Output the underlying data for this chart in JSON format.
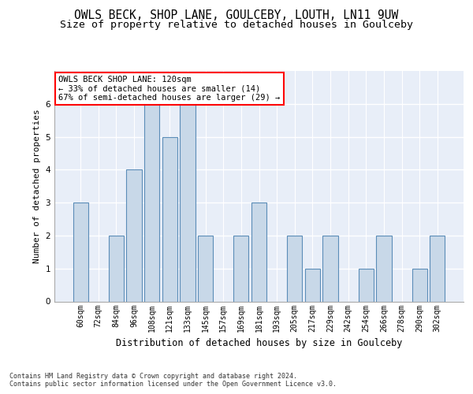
{
  "title1": "OWLS BECK, SHOP LANE, GOULCEBY, LOUTH, LN11 9UW",
  "title2": "Size of property relative to detached houses in Goulceby",
  "xlabel": "Distribution of detached houses by size in Goulceby",
  "ylabel": "Number of detached properties",
  "categories": [
    "60sqm",
    "72sqm",
    "84sqm",
    "96sqm",
    "108sqm",
    "121sqm",
    "133sqm",
    "145sqm",
    "157sqm",
    "169sqm",
    "181sqm",
    "193sqm",
    "205sqm",
    "217sqm",
    "229sqm",
    "242sqm",
    "254sqm",
    "266sqm",
    "278sqm",
    "290sqm",
    "302sqm"
  ],
  "values": [
    3,
    0,
    2,
    4,
    6,
    5,
    6,
    2,
    0,
    2,
    3,
    0,
    2,
    1,
    2,
    0,
    1,
    2,
    0,
    1,
    2
  ],
  "bar_color": "#c8d8e8",
  "bar_edge_color": "#5b8db8",
  "highlight_index": 4,
  "annotation_text": "OWLS BECK SHOP LANE: 120sqm\n← 33% of detached houses are smaller (14)\n67% of semi-detached houses are larger (29) →",
  "box_color": "white",
  "box_edge_color": "red",
  "ylim": [
    0,
    7
  ],
  "yticks": [
    0,
    1,
    2,
    3,
    4,
    5,
    6
  ],
  "background_color": "#e8eef8",
  "footer_text": "Contains HM Land Registry data © Crown copyright and database right 2024.\nContains public sector information licensed under the Open Government Licence v3.0.",
  "title1_fontsize": 10.5,
  "title2_fontsize": 9.5,
  "xlabel_fontsize": 8.5,
  "ylabel_fontsize": 8,
  "tick_fontsize": 7,
  "annotation_fontsize": 7.5,
  "footer_fontsize": 6.0
}
